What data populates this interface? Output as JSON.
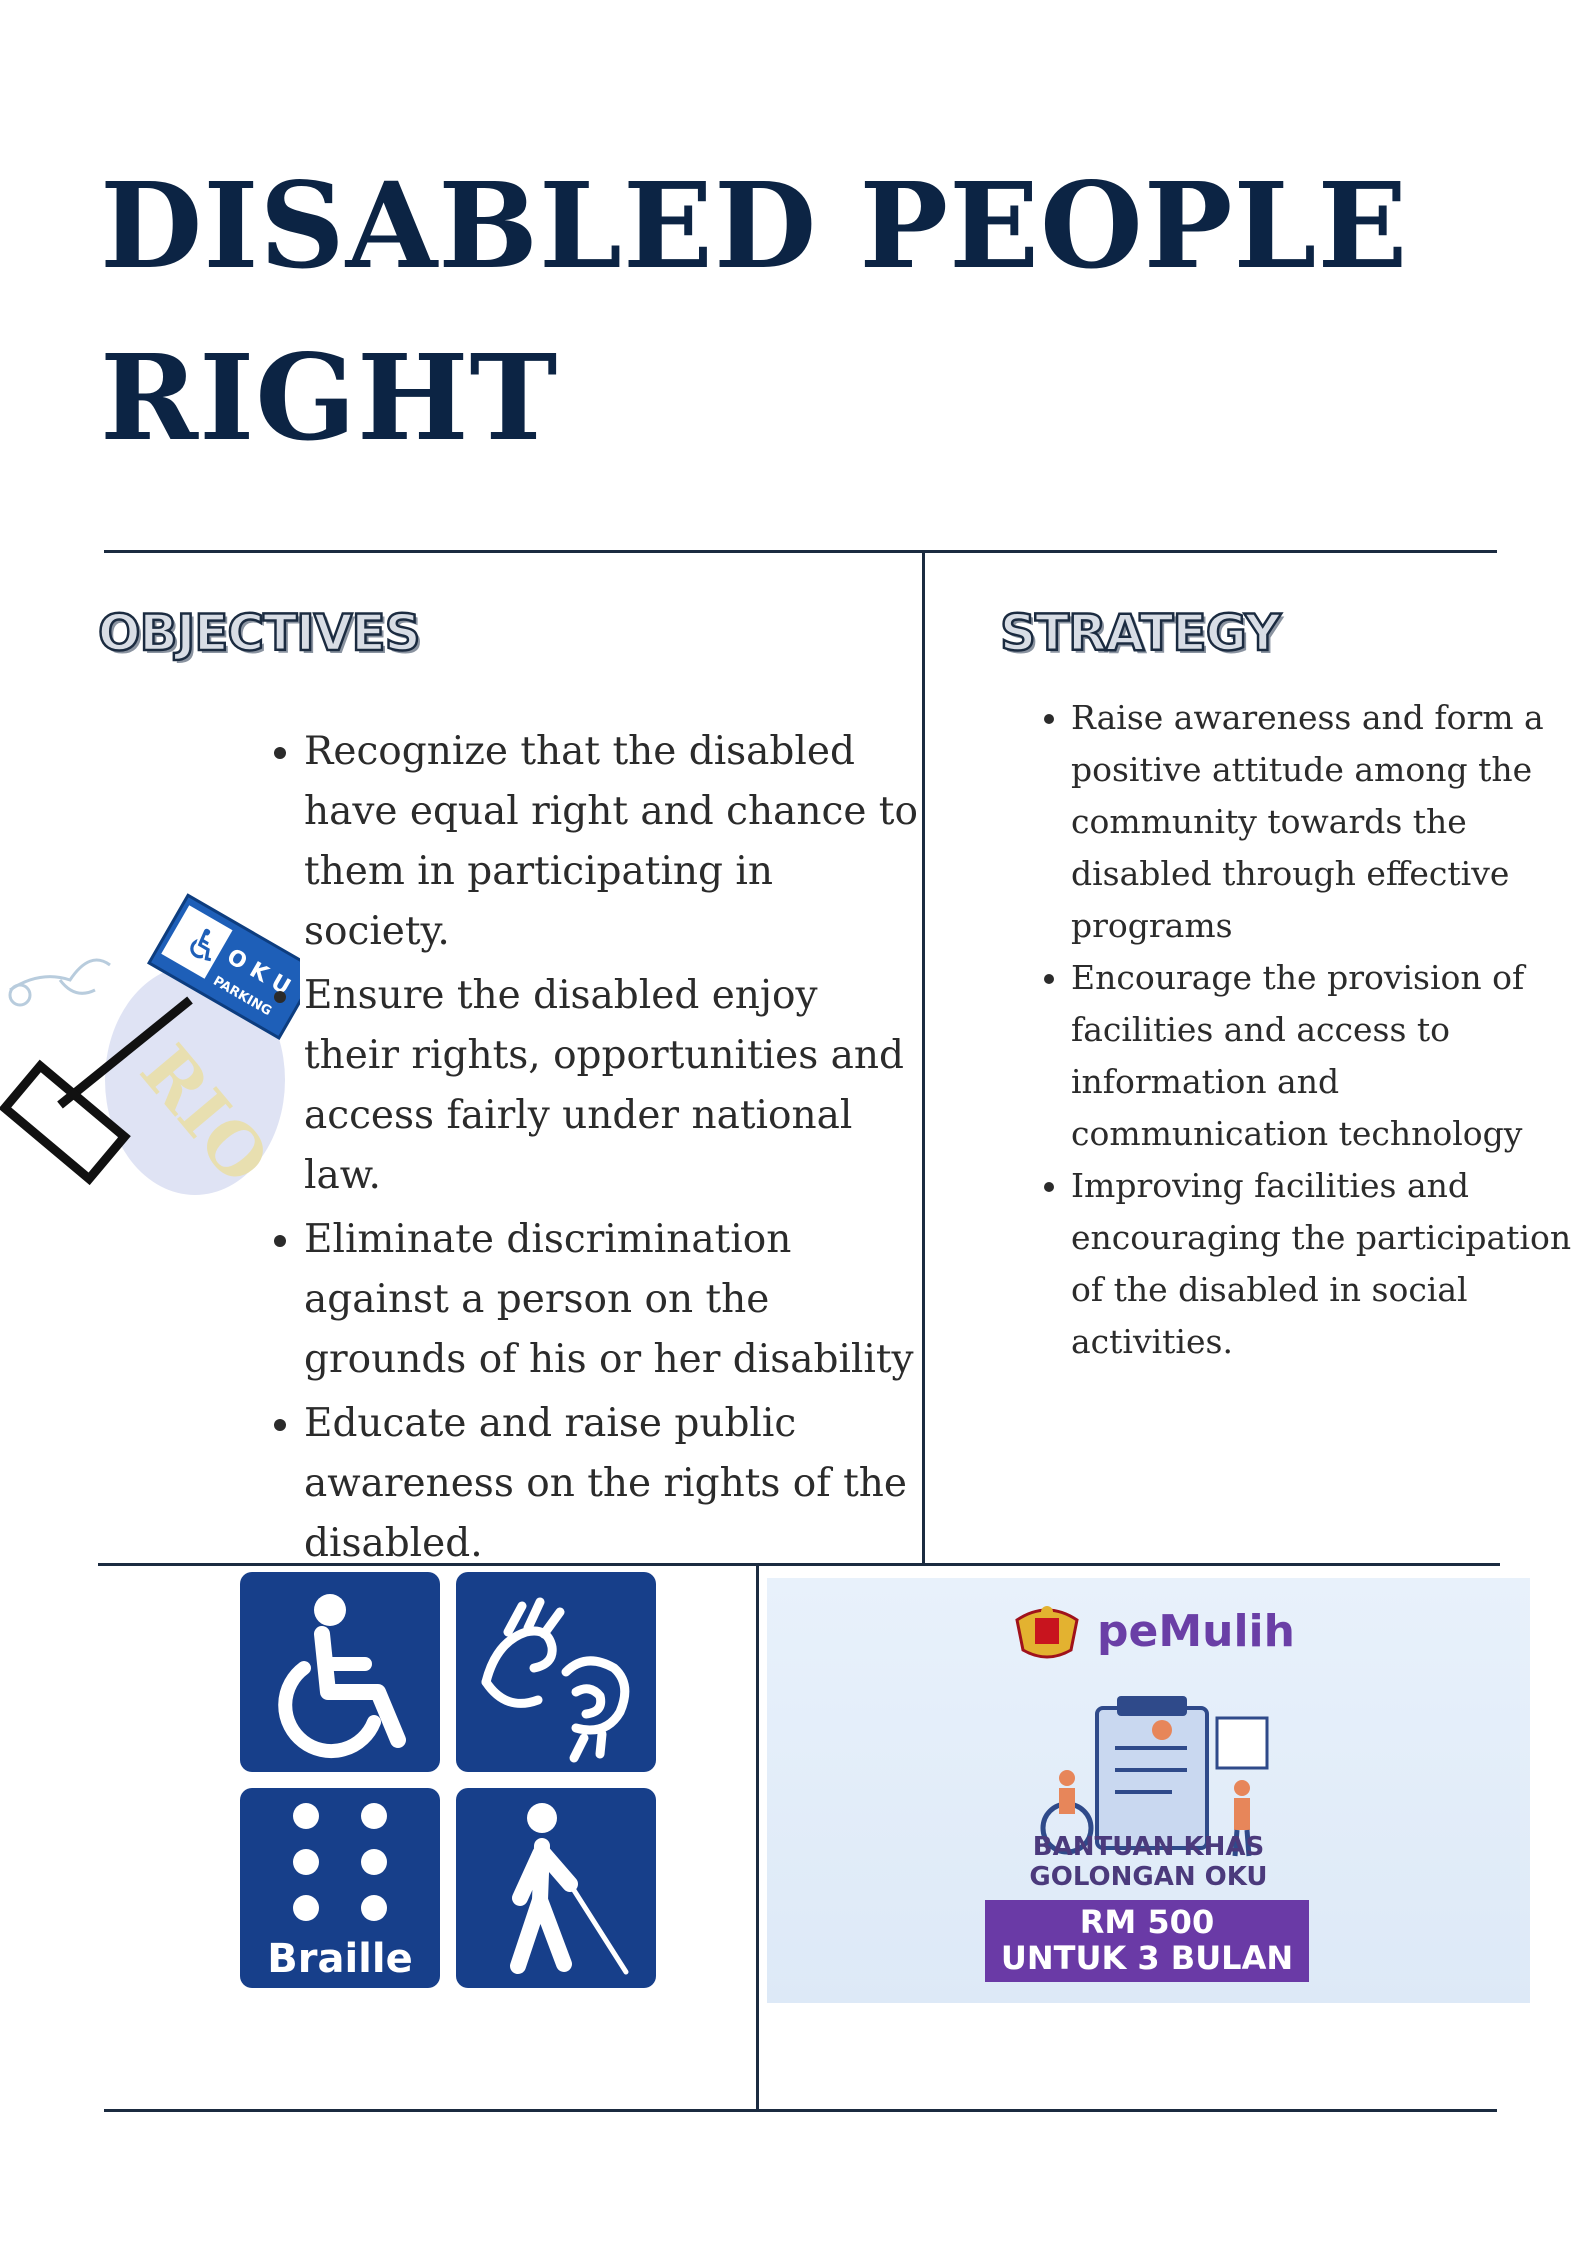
{
  "title": {
    "line1": "DISABLED PEOPLE",
    "line2": "RIGHT"
  },
  "objectives": {
    "heading": "OBJECTIVES",
    "items": [
      "Recognize that the disabled have equal right and chance to them in participating in society.",
      "Ensure the disabled enjoy their rights, opportunities and access fairly under national law.",
      "Eliminate discrimination against a person on the grounds of his or her disability",
      "Educate and raise public awareness on the rights of the disabled."
    ]
  },
  "strategy": {
    "heading": "STRATEGY",
    "items": [
      "Raise awareness and form a positive attitude among the community towards the disabled through effective programs",
      "Encourage the provision of facilities and access to information and communication technology",
      "Improving facilities and encouraging the participation of the disabled in social activities."
    ]
  },
  "parking_sign": {
    "text1": "O K U",
    "text2": "PARKING",
    "watermark": "RIO"
  },
  "symbols": {
    "braille_label": "Braille",
    "tile_color": "#173f8a"
  },
  "pemulih": {
    "logo_text": "peMulih",
    "line1": "BANTUAN KHAS",
    "line2": "GOLONGAN OKU",
    "box_line1": "RM 500",
    "box_line2": "UNTUK 3 BULAN",
    "accent": "#6a3aa6"
  },
  "colors": {
    "title": "#0c2444",
    "rule": "#1b2b40"
  }
}
